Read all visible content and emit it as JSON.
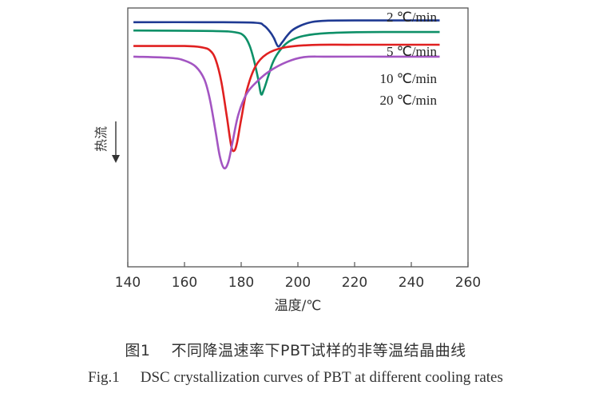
{
  "figure": {
    "caption_cn_label": "图1",
    "caption_cn_text": "不同降温速率下PBT试样的非等温结晶曲线",
    "caption_en_label": "Fig.1",
    "caption_en_text": "DSC crystallization curves of PBT at different cooling rates"
  },
  "chart_data": {
    "type": "line",
    "title": "",
    "xlabel": "温度/℃",
    "ylabel": "热流",
    "y_arrow": "down",
    "xlim": [
      140,
      260
    ],
    "x_ticks": [
      140,
      160,
      180,
      200,
      220,
      240,
      260
    ],
    "y_ticks": [],
    "ylim": [
      0,
      100
    ],
    "grid": false,
    "legend": "labels next to curves at right",
    "series": [
      {
        "name": "2 ℃/min",
        "color": "#1f3a93",
        "x": [
          142,
          170,
          185,
          188,
          190,
          191.5,
          193,
          194.5,
          196,
          198,
          201,
          205,
          210,
          220,
          235,
          250
        ],
        "y": [
          94.5,
          94.5,
          94.3,
          93.2,
          91.0,
          88.5,
          85.2,
          86.8,
          89.0,
          91.4,
          93.2,
          94.6,
          95.1,
          95.2,
          95.2,
          95.2
        ]
      },
      {
        "name": "5 ℃/min",
        "color": "#0e9068",
        "x": [
          142,
          170,
          178,
          181,
          183,
          184.5,
          186,
          187,
          188,
          189.5,
          191,
          193,
          196,
          200,
          206,
          215,
          230,
          250
        ],
        "y": [
          91.3,
          91.1,
          90.6,
          89.2,
          85.4,
          79.8,
          72.5,
          66.7,
          68.5,
          73.5,
          78.5,
          82.6,
          86.4,
          88.6,
          89.9,
          90.5,
          90.7,
          90.7
        ]
      },
      {
        "name": "10 ℃/min",
        "color": "#e02020",
        "x": [
          142,
          160,
          166,
          169,
          171,
          173,
          175,
          176.5,
          177.5,
          178.5,
          180,
          182,
          185,
          189,
          195,
          205,
          220,
          250
        ],
        "y": [
          85.3,
          85.3,
          84.8,
          83.6,
          80.0,
          71.5,
          57.5,
          46.6,
          44.8,
          47.8,
          57.0,
          68.3,
          77.4,
          82.2,
          84.7,
          85.7,
          85.8,
          85.8
        ]
      },
      {
        "name": "20 ℃/min",
        "color": "#a355c2",
        "x": [
          142,
          155,
          160,
          164,
          167,
          169,
          171,
          172.5,
          174,
          175.5,
          177,
          179,
          182,
          186,
          190,
          196,
          202,
          210,
          230,
          250
        ],
        "y": [
          81.2,
          80.7,
          79.7,
          77.3,
          72.4,
          64.5,
          52.0,
          42.5,
          38.1,
          40.6,
          48.5,
          58.9,
          67.0,
          72.0,
          75.6,
          79.1,
          81.0,
          81.2,
          81.2,
          81.2
        ]
      }
    ]
  }
}
